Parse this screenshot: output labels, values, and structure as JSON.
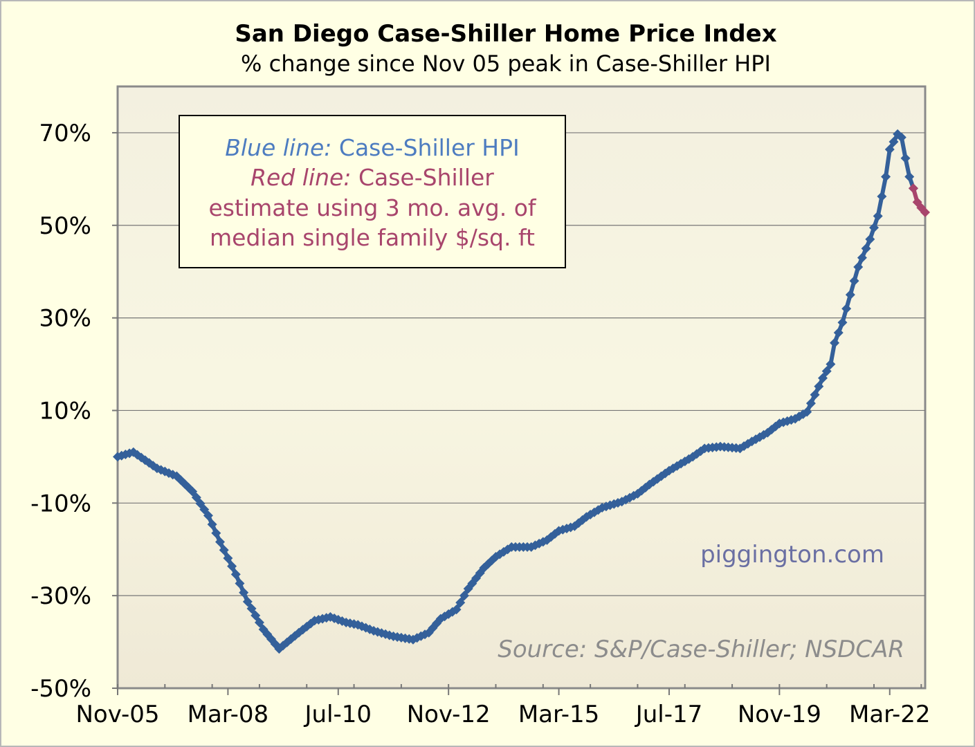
{
  "chart_data": {
    "type": "line",
    "title": "San Diego Case-Shiller Home Price Index",
    "subtitle": "% change since Nov 05 peak in Case-Shiller HPI",
    "xlabel": "",
    "ylabel": "",
    "x_unit": "months since Nov-05",
    "xlim": [
      0,
      205
    ],
    "ylim": [
      -50,
      80
    ],
    "grid": true,
    "y_ticks": [
      {
        "value": 70,
        "label": "70%"
      },
      {
        "value": 50,
        "label": "50%"
      },
      {
        "value": 30,
        "label": "30%"
      },
      {
        "value": 10,
        "label": "10%"
      },
      {
        "value": -10,
        "label": "-10%"
      },
      {
        "value": -30,
        "label": "-30%"
      },
      {
        "value": -50,
        "label": "-50%"
      }
    ],
    "x_ticks": [
      {
        "value": 0,
        "label": "Nov-05"
      },
      {
        "value": 28,
        "label": "Mar-08"
      },
      {
        "value": 56,
        "label": "Jul-10"
      },
      {
        "value": 84,
        "label": "Nov-12"
      },
      {
        "value": 112,
        "label": "Mar-15"
      },
      {
        "value": 140,
        "label": "Jul-17"
      },
      {
        "value": 168,
        "label": "Nov-19"
      },
      {
        "value": 196,
        "label": "Mar-22"
      }
    ],
    "series": [
      {
        "name": "Case-Shiller HPI",
        "color": "#34609a",
        "points": [
          [
            0,
            0
          ],
          [
            4,
            1
          ],
          [
            10,
            -2.5
          ],
          [
            15,
            -4.2
          ],
          [
            19,
            -7.5
          ],
          [
            23,
            -12.7
          ],
          [
            26,
            -18.4
          ],
          [
            30,
            -25.4
          ],
          [
            33,
            -31.3
          ],
          [
            37,
            -37.3
          ],
          [
            41,
            -41.5
          ],
          [
            46,
            -38
          ],
          [
            50,
            -35.4
          ],
          [
            54,
            -34.6
          ],
          [
            58,
            -35.8
          ],
          [
            61,
            -36.3
          ],
          [
            65,
            -37.6
          ],
          [
            70,
            -38.8
          ],
          [
            75,
            -39.5
          ],
          [
            79,
            -38
          ],
          [
            82,
            -35
          ],
          [
            86,
            -33
          ],
          [
            89,
            -28.5
          ],
          [
            93,
            -24
          ],
          [
            96,
            -21.6
          ],
          [
            100,
            -19.5
          ],
          [
            105,
            -19.5
          ],
          [
            109,
            -18
          ],
          [
            112,
            -16
          ],
          [
            116,
            -15
          ],
          [
            119,
            -13
          ],
          [
            123,
            -11
          ],
          [
            128,
            -9.7
          ],
          [
            132,
            -8
          ],
          [
            135,
            -6
          ],
          [
            140,
            -3
          ],
          [
            146,
            0
          ],
          [
            149,
            1.8
          ],
          [
            153,
            2.2
          ],
          [
            158,
            1.8
          ],
          [
            161,
            3.3
          ],
          [
            165,
            5.2
          ],
          [
            168,
            7.2
          ],
          [
            172,
            8.2
          ],
          [
            175,
            9.7
          ],
          [
            177,
            13.4
          ],
          [
            179,
            17
          ],
          [
            181,
            20
          ],
          [
            182,
            24.6
          ],
          [
            184,
            29
          ],
          [
            186,
            35
          ],
          [
            188,
            41
          ],
          [
            189,
            43
          ],
          [
            191,
            47
          ],
          [
            193,
            52
          ],
          [
            195,
            60.5
          ],
          [
            196,
            66.4
          ],
          [
            198,
            69.7
          ],
          [
            199,
            69
          ],
          [
            200,
            64.5
          ],
          [
            201,
            60.5
          ],
          [
            202,
            58
          ]
        ]
      },
      {
        "name": "Case-Shiller estimate (3 mo. avg. median SF $/sq. ft)",
        "color": "#a8456c",
        "points": [
          [
            202,
            58
          ],
          [
            203,
            55
          ],
          [
            204,
            53.8
          ],
          [
            205,
            52.8
          ]
        ]
      }
    ],
    "legend": {
      "placement": "top-left",
      "line1_label": "Blue line:",
      "line1_text": " Case-Shiller HPI",
      "line2_label": "Red line:",
      "line2_text": " Case-Shiller",
      "line3_text": "estimate using 3 mo. avg. of",
      "line4_text": "median single family $/sq. ft"
    },
    "annotations": {
      "watermark": "piggington.com",
      "source": "Source: S&P/Case-Shiller; NSDCAR"
    },
    "colors": {
      "background": "#ffffe4",
      "blue_text": "#4d7cc0",
      "red_text": "#a8456c",
      "watermark": "#6a6fa3",
      "source": "#8c8c8c"
    }
  }
}
